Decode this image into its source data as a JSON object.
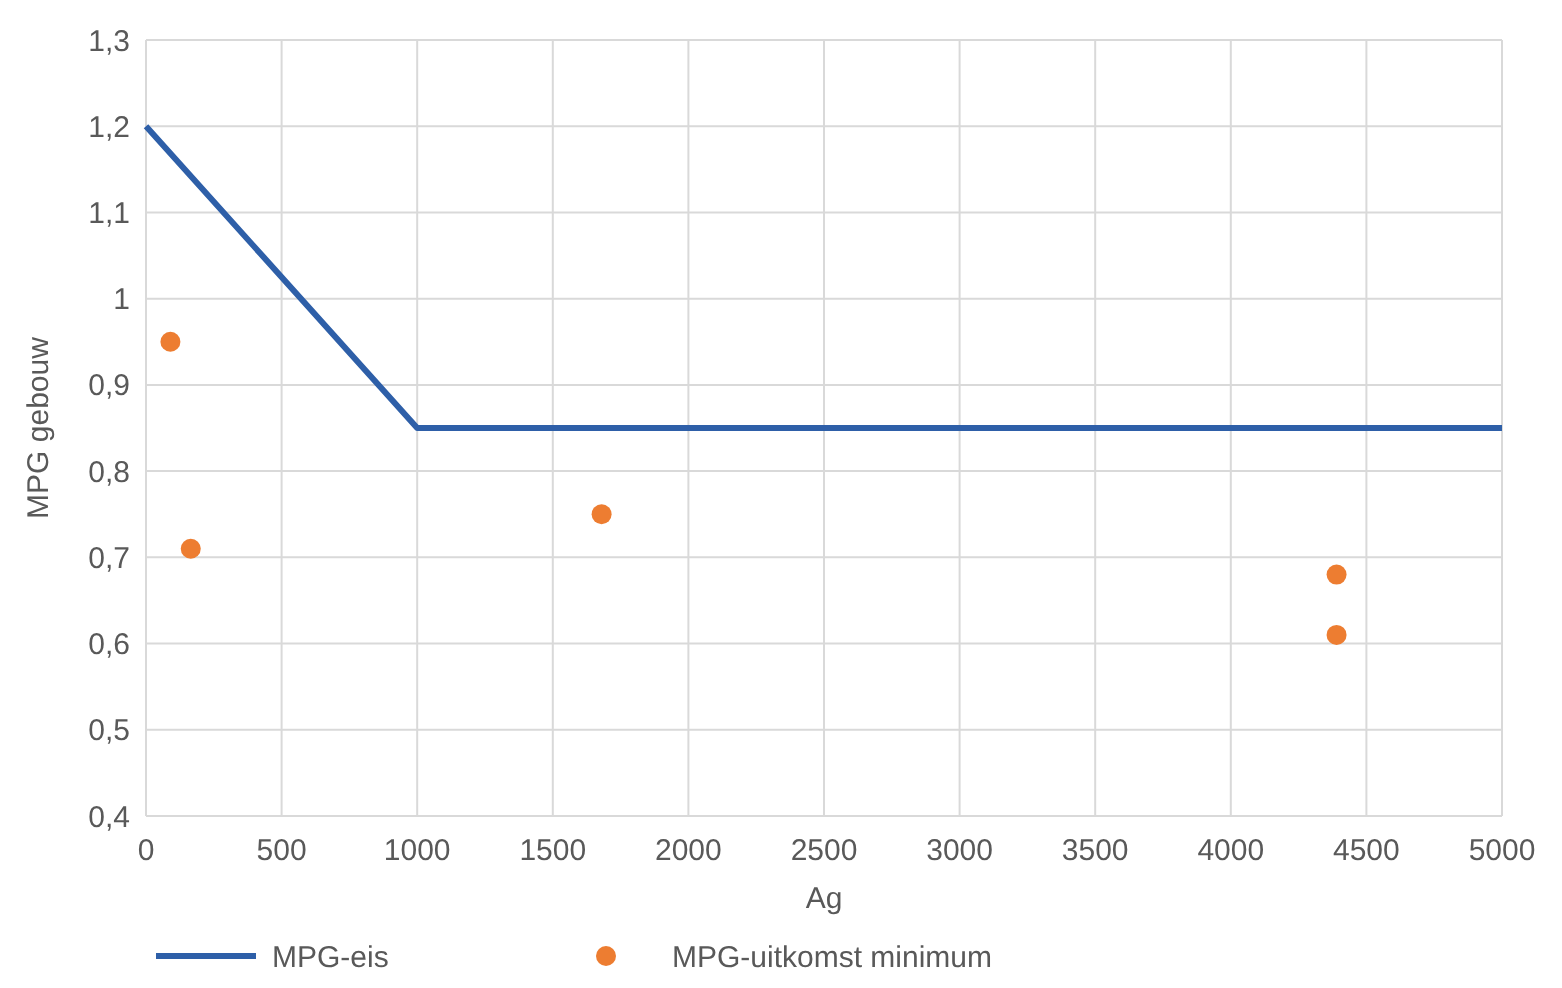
{
  "chart_data": {
    "type": "scatter",
    "xlabel": "Ag",
    "ylabel": "MPG gebouw",
    "xlim": [
      0,
      5000
    ],
    "xticks": [
      0,
      500,
      1000,
      1500,
      2000,
      2500,
      3000,
      3500,
      4000,
      4500,
      5000
    ],
    "ylim": [
      0.4,
      1.3
    ],
    "yticks": [
      {
        "value": 0.4,
        "label": "0,4"
      },
      {
        "value": 0.5,
        "label": "0,5"
      },
      {
        "value": 0.6,
        "label": "0,6"
      },
      {
        "value": 0.7,
        "label": "0,7"
      },
      {
        "value": 0.8,
        "label": "0,8"
      },
      {
        "value": 0.9,
        "label": "0,9"
      },
      {
        "value": 1,
        "label": "1"
      },
      {
        "value": 1.1,
        "label": "1,1"
      },
      {
        "value": 1.2,
        "label": "1,2"
      },
      {
        "value": 1.3,
        "label": "1,3"
      }
    ],
    "grid": true,
    "legend": "bottom",
    "series": [
      {
        "name": "MPG-eis",
        "type": "line",
        "color": "#2e5fa8",
        "marker": "none",
        "x": [
          0,
          1000,
          5000
        ],
        "values": [
          1.2,
          0.85,
          0.85
        ]
      },
      {
        "name": "MPG-uitkomst minimum",
        "color": "#ed7d31",
        "marker": "circle",
        "x": [
          90,
          165,
          1680,
          4390,
          4390
        ],
        "values": [
          0.95,
          0.71,
          0.75,
          0.68,
          0.61
        ]
      }
    ]
  }
}
